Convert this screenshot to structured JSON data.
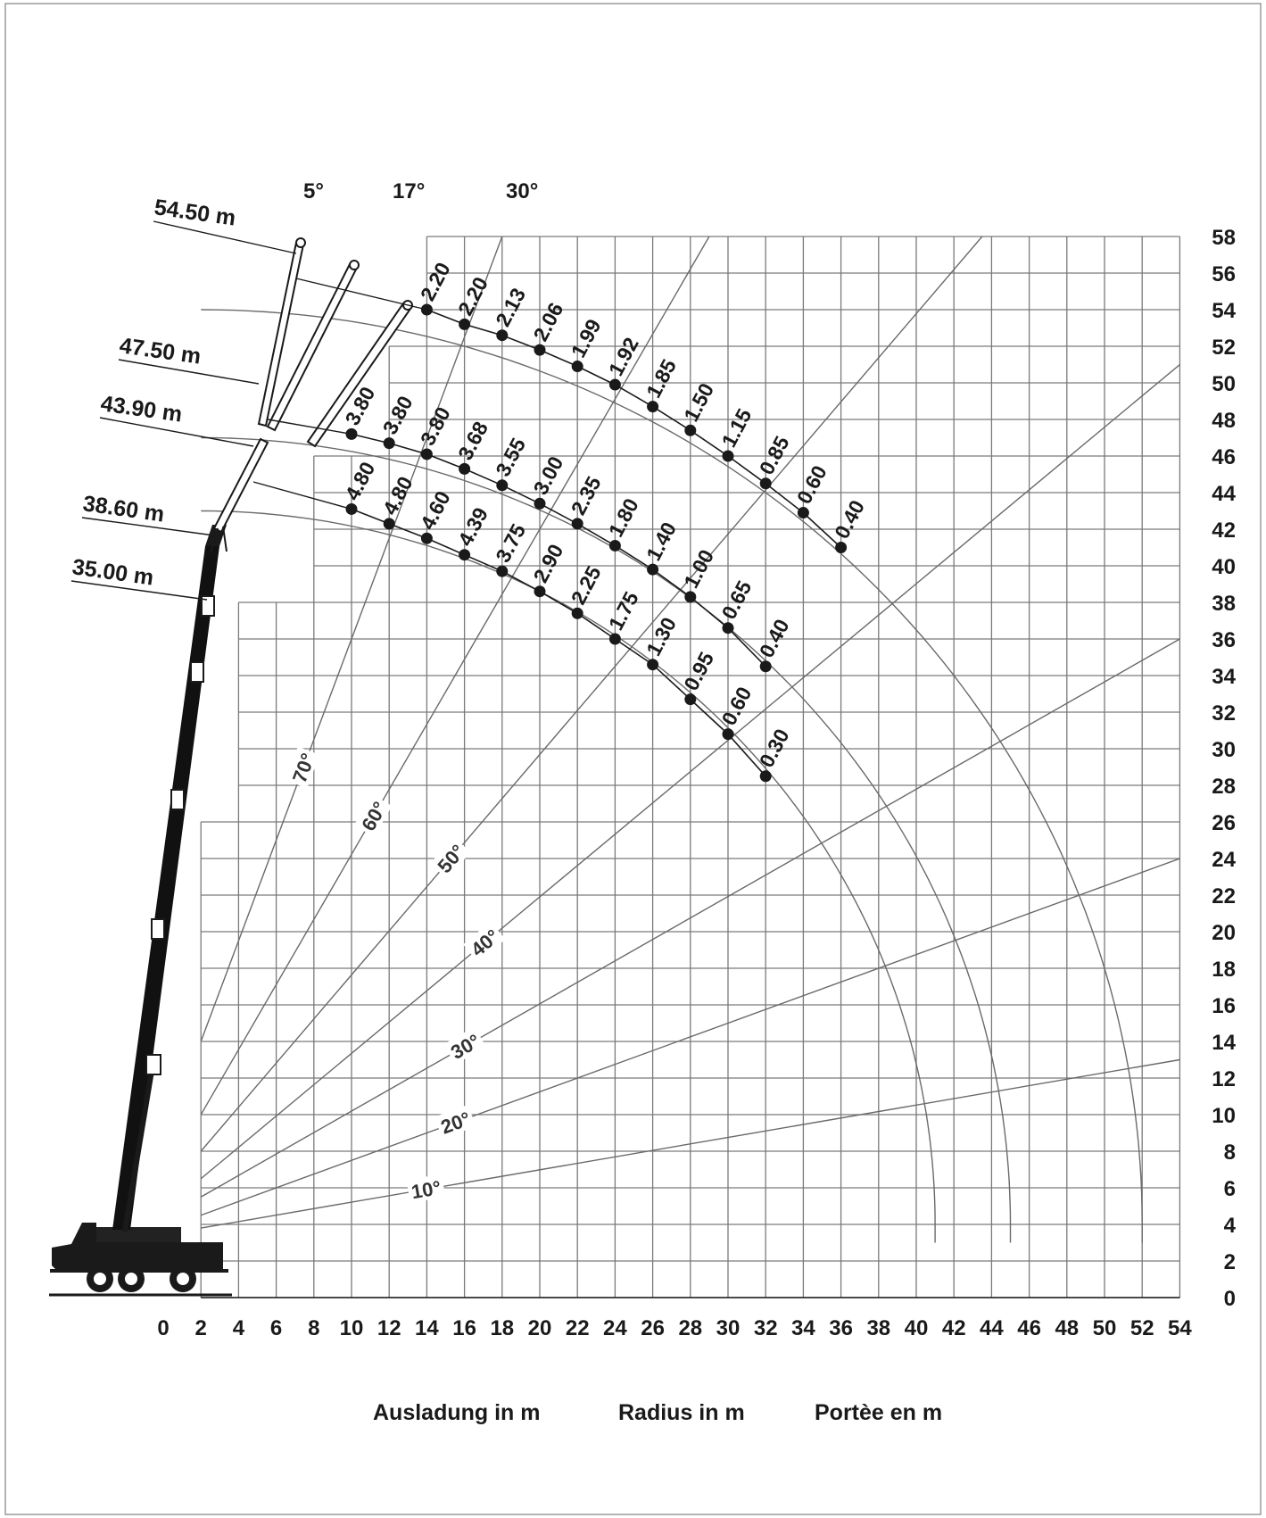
{
  "colors": {
    "grid": "#7a7a7a",
    "curve": "#6a6a6a",
    "ink": "#1a1a1a",
    "frame": "#9a9a9a"
  },
  "chart_data": {
    "type": "scatter",
    "xlabel": "",
    "ylabel": "",
    "xlim": [
      0,
      54
    ],
    "ylim": [
      0,
      58
    ],
    "x_ticks": [
      0,
      2,
      4,
      6,
      8,
      10,
      12,
      14,
      16,
      18,
      20,
      22,
      24,
      26,
      28,
      30,
      32,
      34,
      36,
      38,
      40,
      42,
      44,
      46,
      48,
      50,
      52,
      54
    ],
    "y_ticks": [
      0,
      2,
      4,
      6,
      8,
      10,
      12,
      14,
      16,
      18,
      20,
      22,
      24,
      26,
      28,
      30,
      32,
      34,
      36,
      38,
      40,
      42,
      44,
      46,
      48,
      50,
      52,
      54,
      56,
      58
    ],
    "axis_titles": [
      "Ausladung in m",
      "Radius in m",
      "Portèe en m"
    ],
    "top_angles": [
      "5°",
      "17°",
      "30°"
    ],
    "boom_lengths": [
      "54.50 m",
      "47.50 m",
      "43.90 m",
      "38.60 m",
      "35.00 m"
    ],
    "angle_lines": [
      {
        "label": "10°",
        "value": 10,
        "x0": 2,
        "y0": 3.8,
        "x1": 54,
        "y1": 13.0
      },
      {
        "label": "20°",
        "value": 20,
        "x0": 2,
        "y0": 4.5,
        "x1": 54,
        "y1": 24.0
      },
      {
        "label": "30°",
        "value": 30,
        "x0": 2,
        "y0": 5.5,
        "x1": 54,
        "y1": 36.0
      },
      {
        "label": "40°",
        "value": 40,
        "x0": 2,
        "y0": 6.5,
        "x1": 54,
        "y1": 51.0
      },
      {
        "label": "50°",
        "value": 50,
        "x0": 2,
        "y0": 8.0,
        "x1": 43.5,
        "y1": 58
      },
      {
        "label": "60°",
        "value": 60,
        "x0": 2,
        "y0": 10.0,
        "x1": 29,
        "y1": 58
      },
      {
        "label": "70°",
        "value": 70,
        "x0": 2,
        "y0": 14.0,
        "x1": 18,
        "y1": 58
      }
    ],
    "radius_curves": [
      {
        "center": [
          2,
          4
        ],
        "radius": 39,
        "x_end": 41,
        "y_end": 3
      },
      {
        "center": [
          2,
          4
        ],
        "radius": 43,
        "x_end": 45,
        "y_end": 3
      },
      {
        "center": [
          2,
          4
        ],
        "radius": 50,
        "x_end": 52,
        "y_end": 3
      }
    ],
    "series": [
      {
        "name": "",
        "points": [
          {
            "x": 14,
            "y": 54.0,
            "label": "2.20"
          },
          {
            "x": 16,
            "y": 53.2,
            "label": "2.20"
          },
          {
            "x": 18,
            "y": 52.6,
            "label": "2.13"
          },
          {
            "x": 20,
            "y": 51.8,
            "label": "2.06"
          },
          {
            "x": 22,
            "y": 50.9,
            "label": "1.99"
          },
          {
            "x": 24,
            "y": 49.9,
            "label": "1.92"
          },
          {
            "x": 26,
            "y": 48.7,
            "label": "1.85"
          },
          {
            "x": 28,
            "y": 47.4,
            "label": "1.50"
          },
          {
            "x": 30,
            "y": 46.0,
            "label": "1.15"
          },
          {
            "x": 32,
            "y": 44.5,
            "label": "0.85"
          },
          {
            "x": 34,
            "y": 42.9,
            "label": "0.60"
          },
          {
            "x": 36,
            "y": 41.0,
            "label": "0.40"
          }
        ]
      },
      {
        "name": "",
        "points": [
          {
            "x": 10,
            "y": 47.2,
            "label": "3.80"
          },
          {
            "x": 12,
            "y": 46.7,
            "label": "3.80"
          },
          {
            "x": 14,
            "y": 46.1,
            "label": "3.80"
          },
          {
            "x": 16,
            "y": 45.3,
            "label": "3.68"
          },
          {
            "x": 18,
            "y": 44.4,
            "label": "3.55"
          },
          {
            "x": 20,
            "y": 43.4,
            "label": "3.00"
          },
          {
            "x": 22,
            "y": 42.3,
            "label": "2.35"
          },
          {
            "x": 24,
            "y": 41.1,
            "label": "1.80"
          },
          {
            "x": 26,
            "y": 39.8,
            "label": "1.40"
          },
          {
            "x": 28,
            "y": 38.3,
            "label": "1.00"
          },
          {
            "x": 30,
            "y": 36.6,
            "label": "0.65"
          },
          {
            "x": 32,
            "y": 34.5,
            "label": "0.40"
          }
        ]
      },
      {
        "name": "",
        "points": [
          {
            "x": 10,
            "y": 43.1,
            "label": "4.80"
          },
          {
            "x": 12,
            "y": 42.3,
            "label": "4.80"
          },
          {
            "x": 14,
            "y": 41.5,
            "label": "4.60"
          },
          {
            "x": 16,
            "y": 40.6,
            "label": "4.39"
          },
          {
            "x": 18,
            "y": 39.7,
            "label": "3.75"
          },
          {
            "x": 20,
            "y": 38.6,
            "label": "2.90"
          },
          {
            "x": 22,
            "y": 37.4,
            "label": "2.25"
          },
          {
            "x": 24,
            "y": 36.0,
            "label": "1.75"
          },
          {
            "x": 26,
            "y": 34.6,
            "label": "1.30"
          },
          {
            "x": 28,
            "y": 32.7,
            "label": "0.95"
          },
          {
            "x": 30,
            "y": 30.8,
            "label": "0.60"
          },
          {
            "x": 32,
            "y": 28.5,
            "label": "0.30"
          }
        ]
      }
    ]
  }
}
